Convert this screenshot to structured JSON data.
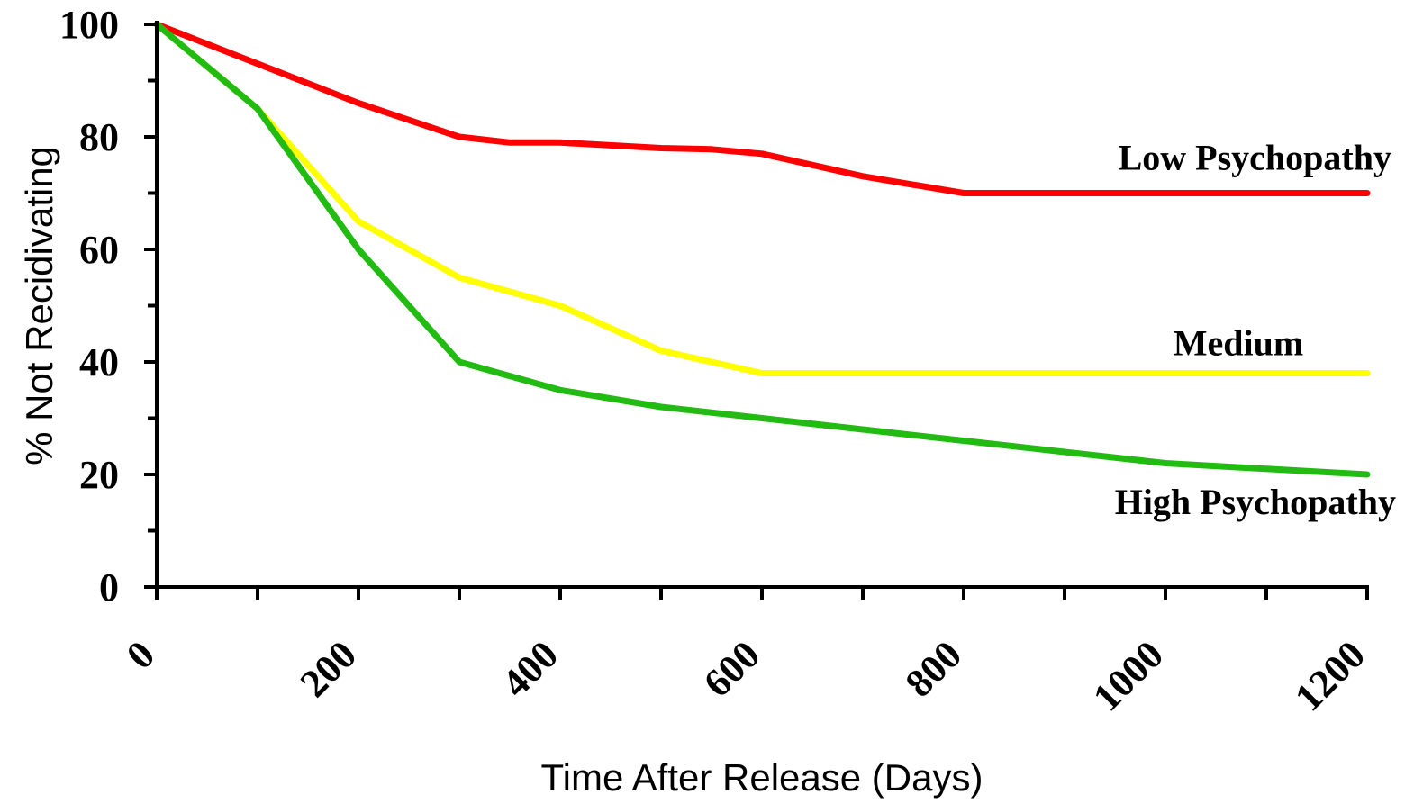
{
  "chart_data": {
    "type": "line",
    "title": "",
    "xlabel": "Time After Release (Days)",
    "ylabel": "% Not Recidivating",
    "xlim": [
      0,
      1200
    ],
    "ylim": [
      0,
      100
    ],
    "x_ticks": [
      0,
      200,
      400,
      600,
      800,
      1000,
      1200
    ],
    "y_ticks": [
      0,
      20,
      40,
      60,
      80,
      100
    ],
    "grid": false,
    "legend": "none",
    "series": [
      {
        "name": "Low Psychopathy",
        "color": "#ff0000",
        "x": [
          0,
          100,
          200,
          300,
          350,
          400,
          500,
          550,
          600,
          700,
          800,
          850,
          900,
          1000,
          1100,
          1200
        ],
        "y": [
          100,
          93,
          86,
          80,
          79,
          79,
          78,
          77.8,
          77,
          73,
          70,
          70,
          70,
          70,
          70,
          70
        ]
      },
      {
        "name": "Medium",
        "color": "#ffff00",
        "x": [
          0,
          100,
          200,
          300,
          400,
          500,
          600,
          700,
          800,
          900,
          1000,
          1100,
          1200
        ],
        "y": [
          100,
          85,
          65,
          55,
          50,
          42,
          38,
          38,
          38,
          38,
          38,
          38,
          38
        ]
      },
      {
        "name": "High Psychopathy",
        "color": "#22bb11",
        "x": [
          0,
          100,
          200,
          300,
          400,
          500,
          600,
          700,
          800,
          900,
          1000,
          1100,
          1200
        ],
        "y": [
          100,
          85,
          60,
          40,
          35,
          32,
          30,
          28,
          26,
          24,
          22,
          21,
          20
        ]
      }
    ]
  }
}
